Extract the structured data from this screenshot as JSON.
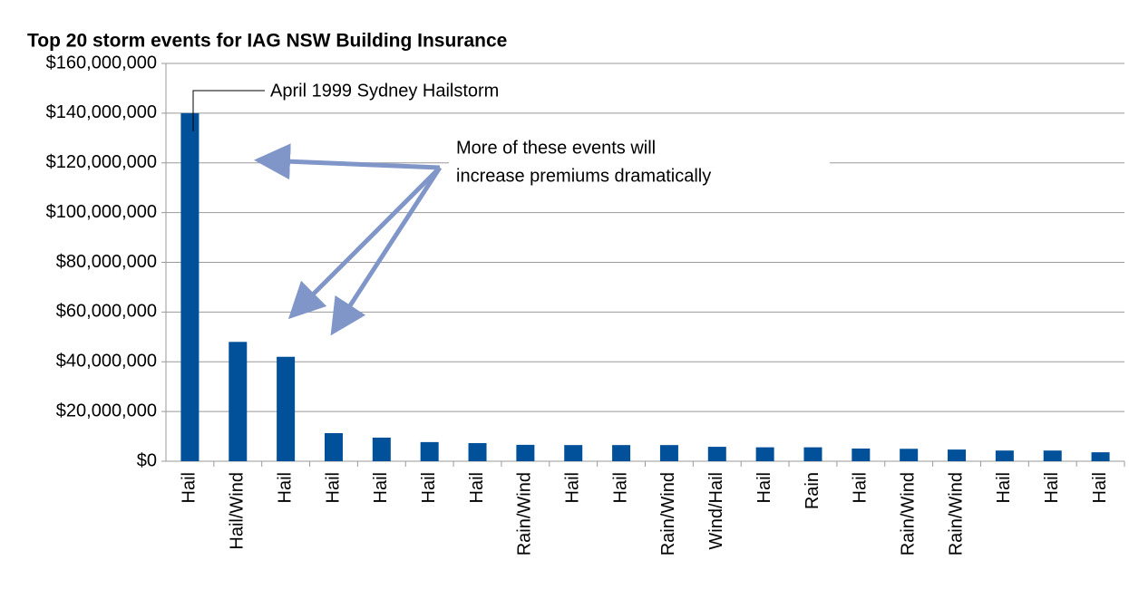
{
  "chart_data": {
    "type": "bar",
    "title": "Top 20 storm events for IAG NSW Building Insurance",
    "categories": [
      "Hail",
      "Hail/Wind",
      "Hail",
      "Hail",
      "Hail",
      "Hail",
      "Hail",
      "Rain/Wind",
      "Hail",
      "Hail",
      "Rain/Wind",
      "Wind/Hail",
      "Hail",
      "Rain",
      "Hail",
      "Rain/Wind",
      "Rain/Wind",
      "Hail",
      "Hail",
      "Hail"
    ],
    "values": [
      140000000,
      48000000,
      42000000,
      11300000,
      9500000,
      7700000,
      7300000,
      6600000,
      6500000,
      6500000,
      6500000,
      5800000,
      5600000,
      5600000,
      5100000,
      5000000,
      4700000,
      4300000,
      4300000,
      3600000
    ],
    "color": "#00509a",
    "ylim": [
      0,
      160000000
    ],
    "yticks": [
      {
        "value": 0,
        "label": "$0"
      },
      {
        "value": 20000000,
        "label": "$20,000,000"
      },
      {
        "value": 40000000,
        "label": "$40,000,000"
      },
      {
        "value": 60000000,
        "label": "$60,000,000"
      },
      {
        "value": 80000000,
        "label": "$80,000,000"
      },
      {
        "value": 100000000,
        "label": "$100,000,000"
      },
      {
        "value": 120000000,
        "label": "$120,000,000"
      },
      {
        "value": 140000000,
        "label": "$140,000,000"
      },
      {
        "value": 160000000,
        "label": "$160,000,000"
      }
    ],
    "grid": true,
    "annotations": [
      "April 1999 Sydney Hailstorm",
      "More of these events will",
      "increase premiums dramatically"
    ]
  }
}
